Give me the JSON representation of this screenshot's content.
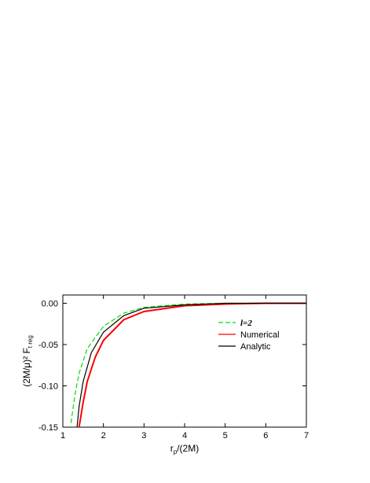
{
  "chart_data": {
    "type": "line",
    "x_label": "r",
    "x_label_sub": "p",
    "x_label_tail": "/(2M)",
    "y_label": "(2M/μ)² F",
    "y_label_sub": "t reg",
    "xlim": [
      1,
      7
    ],
    "xticks": [
      1,
      2,
      3,
      4,
      5,
      6,
      7
    ],
    "ylim": [
      -0.15,
      0.01
    ],
    "yticks": [
      {
        "value": 0,
        "label": "0.00"
      },
      -0.05,
      {
        "value": -0.1,
        "label": "-0.10"
      },
      -0.15
    ],
    "legend": "upper right",
    "series": [
      {
        "name": "l=2",
        "color": "#00dd00",
        "dashed": true,
        "x": [
          1.2,
          1.3,
          1.4,
          1.6,
          2.0,
          2.5,
          3,
          4,
          5,
          7
        ],
        "values": [
          -0.145,
          -0.11,
          -0.085,
          -0.055,
          -0.028,
          -0.012,
          -0.005,
          -0.001,
          0,
          0
        ]
      },
      {
        "name": "Numerical",
        "color": "#ff0000",
        "dashed": false,
        "x": [
          1.4,
          1.5,
          1.6,
          1.8,
          2.0,
          2.5,
          3,
          4,
          5,
          6,
          7
        ],
        "values": [
          -0.15,
          -0.12,
          -0.095,
          -0.065,
          -0.045,
          -0.02,
          -0.01,
          -0.003,
          -0.001,
          0,
          0
        ]
      },
      {
        "name": "Analytic",
        "color": "#000000",
        "dashed": false,
        "x": [
          1.35,
          1.4,
          1.5,
          1.7,
          2.0,
          2.5,
          3,
          4,
          5,
          7
        ],
        "values": [
          -0.15,
          -0.125,
          -0.095,
          -0.06,
          -0.035,
          -0.015,
          -0.006,
          -0.002,
          0,
          0
        ]
      }
    ]
  }
}
